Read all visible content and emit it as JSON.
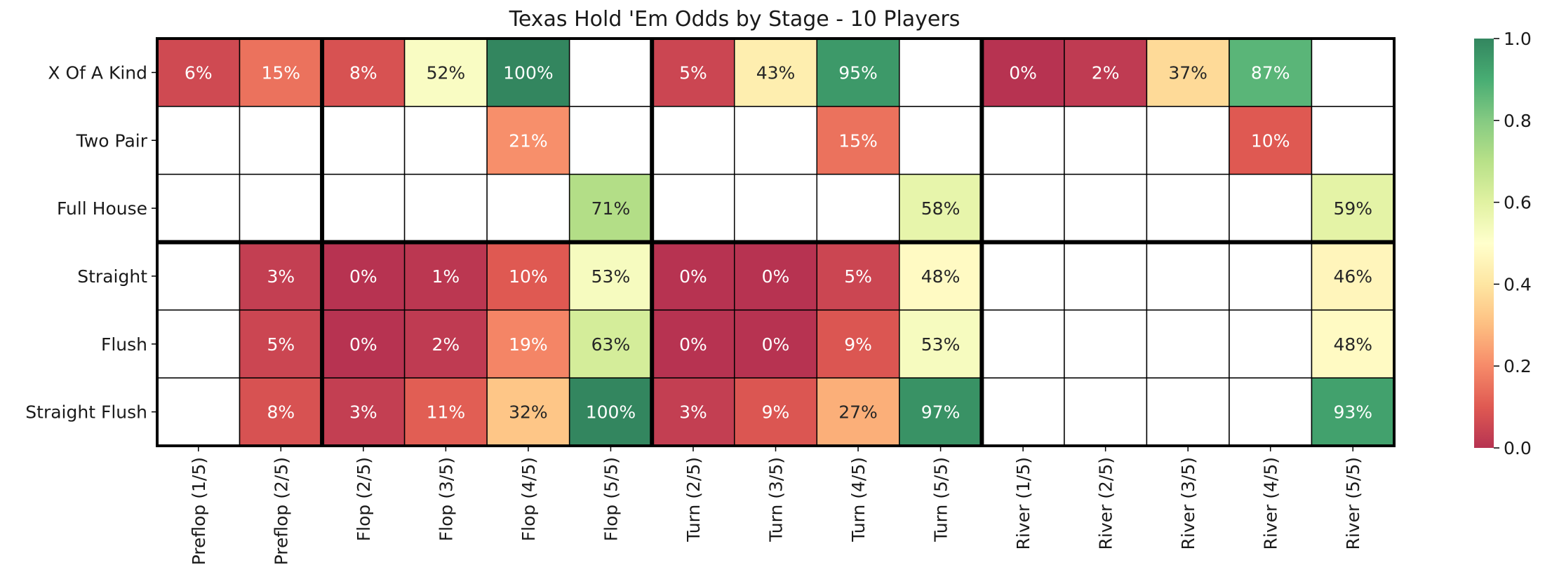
{
  "chart_data": {
    "type": "heatmap",
    "title": "Texas Hold 'Em Odds by Stage - 10 Players",
    "xlabel": "",
    "ylabel": "",
    "rows": [
      "X Of A Kind",
      "Two Pair",
      "Full House",
      "Straight",
      "Flush",
      "Straight Flush"
    ],
    "columns": [
      "Preflop (1/5)",
      "Preflop (2/5)",
      "Flop (2/5)",
      "Flop (3/5)",
      "Flop (4/5)",
      "Flop (5/5)",
      "Turn (2/5)",
      "Turn (3/5)",
      "Turn (4/5)",
      "Turn (5/5)",
      "River (1/5)",
      "River (2/5)",
      "River (3/5)",
      "River (4/5)",
      "River (5/5)"
    ],
    "values": [
      [
        0.06,
        0.15,
        0.08,
        0.52,
        1.0,
        null,
        0.05,
        0.43,
        0.95,
        null,
        0.0,
        0.02,
        0.37,
        0.87,
        null
      ],
      [
        null,
        null,
        null,
        null,
        0.21,
        null,
        null,
        null,
        0.15,
        null,
        null,
        null,
        null,
        0.1,
        null
      ],
      [
        null,
        null,
        null,
        null,
        null,
        0.71,
        null,
        null,
        null,
        0.58,
        null,
        null,
        null,
        null,
        0.59
      ],
      [
        null,
        0.03,
        0.0,
        0.01,
        0.1,
        0.53,
        0.0,
        0.0,
        0.05,
        0.48,
        null,
        null,
        null,
        null,
        0.46
      ],
      [
        null,
        0.05,
        0.0,
        0.02,
        0.19,
        0.63,
        0.0,
        0.0,
        0.09,
        0.53,
        null,
        null,
        null,
        null,
        0.48
      ],
      [
        null,
        0.08,
        0.03,
        0.11,
        0.32,
        1.0,
        0.03,
        0.09,
        0.27,
        0.97,
        null,
        null,
        null,
        null,
        0.93
      ]
    ],
    "cell_labels": [
      [
        "6%",
        "15%",
        "8%",
        "52%",
        "100%",
        "",
        "5%",
        "43%",
        "95%",
        "",
        "0%",
        "2%",
        "37%",
        "87%",
        ""
      ],
      [
        "",
        "",
        "",
        "",
        "21%",
        "",
        "",
        "",
        "15%",
        "",
        "",
        "",
        "",
        "10%",
        ""
      ],
      [
        "",
        "",
        "",
        "",
        "",
        "71%",
        "",
        "",
        "",
        "58%",
        "",
        "",
        "",
        "",
        "59%"
      ],
      [
        "",
        "3%",
        "0%",
        "1%",
        "10%",
        "53%",
        "0%",
        "0%",
        "5%",
        "48%",
        "",
        "",
        "",
        "",
        "46%"
      ],
      [
        "",
        "5%",
        "0%",
        "2%",
        "19%",
        "63%",
        "0%",
        "0%",
        "9%",
        "53%",
        "",
        "",
        "",
        "",
        "48%"
      ],
      [
        "",
        "8%",
        "3%",
        "11%",
        "32%",
        "100%",
        "3%",
        "9%",
        "27%",
        "97%",
        "",
        "",
        "",
        "",
        "93%"
      ]
    ],
    "colormap": "RdYlGn",
    "colormap_stops": [
      "#a50026",
      "#d73027",
      "#f46d43",
      "#fdae61",
      "#fee08b",
      "#ffffbf",
      "#d9ef8b",
      "#a6d96a",
      "#66bd63",
      "#1a9850",
      "#006837"
    ],
    "cell_alpha": 0.8,
    "missing_color": "#ffffff",
    "vmin": 0,
    "vmax": 1,
    "colorbar_ticks": [
      "0.0",
      "0.2",
      "0.4",
      "0.6",
      "0.8",
      "1.0"
    ],
    "section_column_breaks": [
      2,
      6,
      10
    ],
    "section_row_breaks": [
      3
    ],
    "grid": true
  }
}
